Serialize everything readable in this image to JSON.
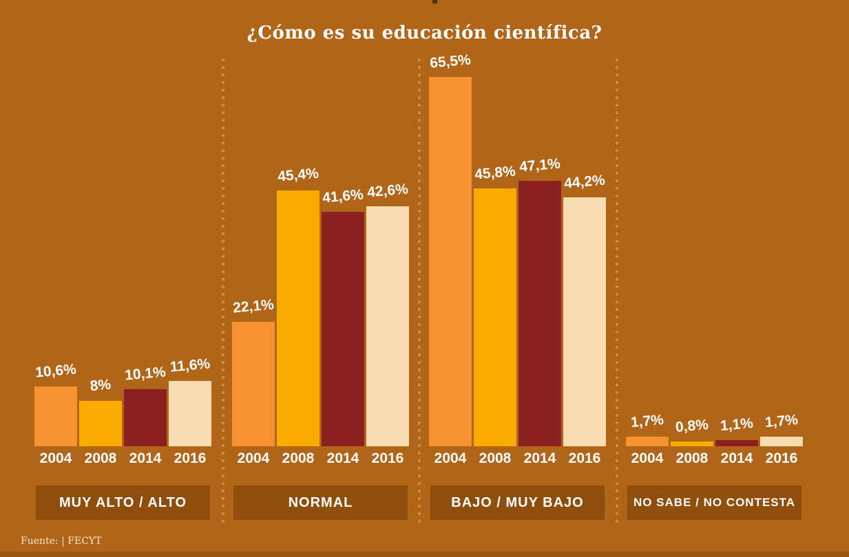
{
  "title": "¿Cómo es su educación científica?",
  "footer": {
    "source": "Fuente: | FECYT"
  },
  "colors": {
    "background": "#b06518",
    "label_box": "#8f4e0b",
    "divider_dot": "#d28a3a",
    "value_text": "#ffffff",
    "footer_text": "#f7e8d2",
    "bottom_strip": "#9a5611"
  },
  "chart_data": {
    "type": "bar",
    "title": "¿Cómo es su educación científica?",
    "categories": [
      "2004",
      "2008",
      "2014",
      "2016"
    ],
    "bar_colors": [
      "#f69232",
      "#f9ab00",
      "#8c2121",
      "#f7dcb2"
    ],
    "groups": [
      {
        "label": "MUY ALTO / ALTO",
        "values": [
          10.6,
          8.0,
          10.1,
          11.6
        ],
        "value_labels": [
          "10,6%",
          "8%",
          "10,1%",
          "11,6%"
        ]
      },
      {
        "label": "NORMAL",
        "values": [
          22.1,
          45.4,
          41.6,
          42.6
        ],
        "value_labels": [
          "22,1%",
          "45,4%",
          "41,6%",
          "42,6%"
        ]
      },
      {
        "label": "BAJO / MUY BAJO",
        "values": [
          65.5,
          45.8,
          47.1,
          44.2
        ],
        "value_labels": [
          "65,5%",
          "45,8%",
          "47,1%",
          "44,2%"
        ]
      },
      {
        "label": "NO SABE / NO CONTESTA",
        "values": [
          1.7,
          0.8,
          1.1,
          1.7
        ],
        "value_labels": [
          "1,7%",
          "0,8%",
          "1,1%",
          "1,7%"
        ]
      }
    ],
    "ylim": [
      0,
      70
    ],
    "grid": false,
    "legend": "none",
    "source": "Fuente: | FECYT"
  }
}
